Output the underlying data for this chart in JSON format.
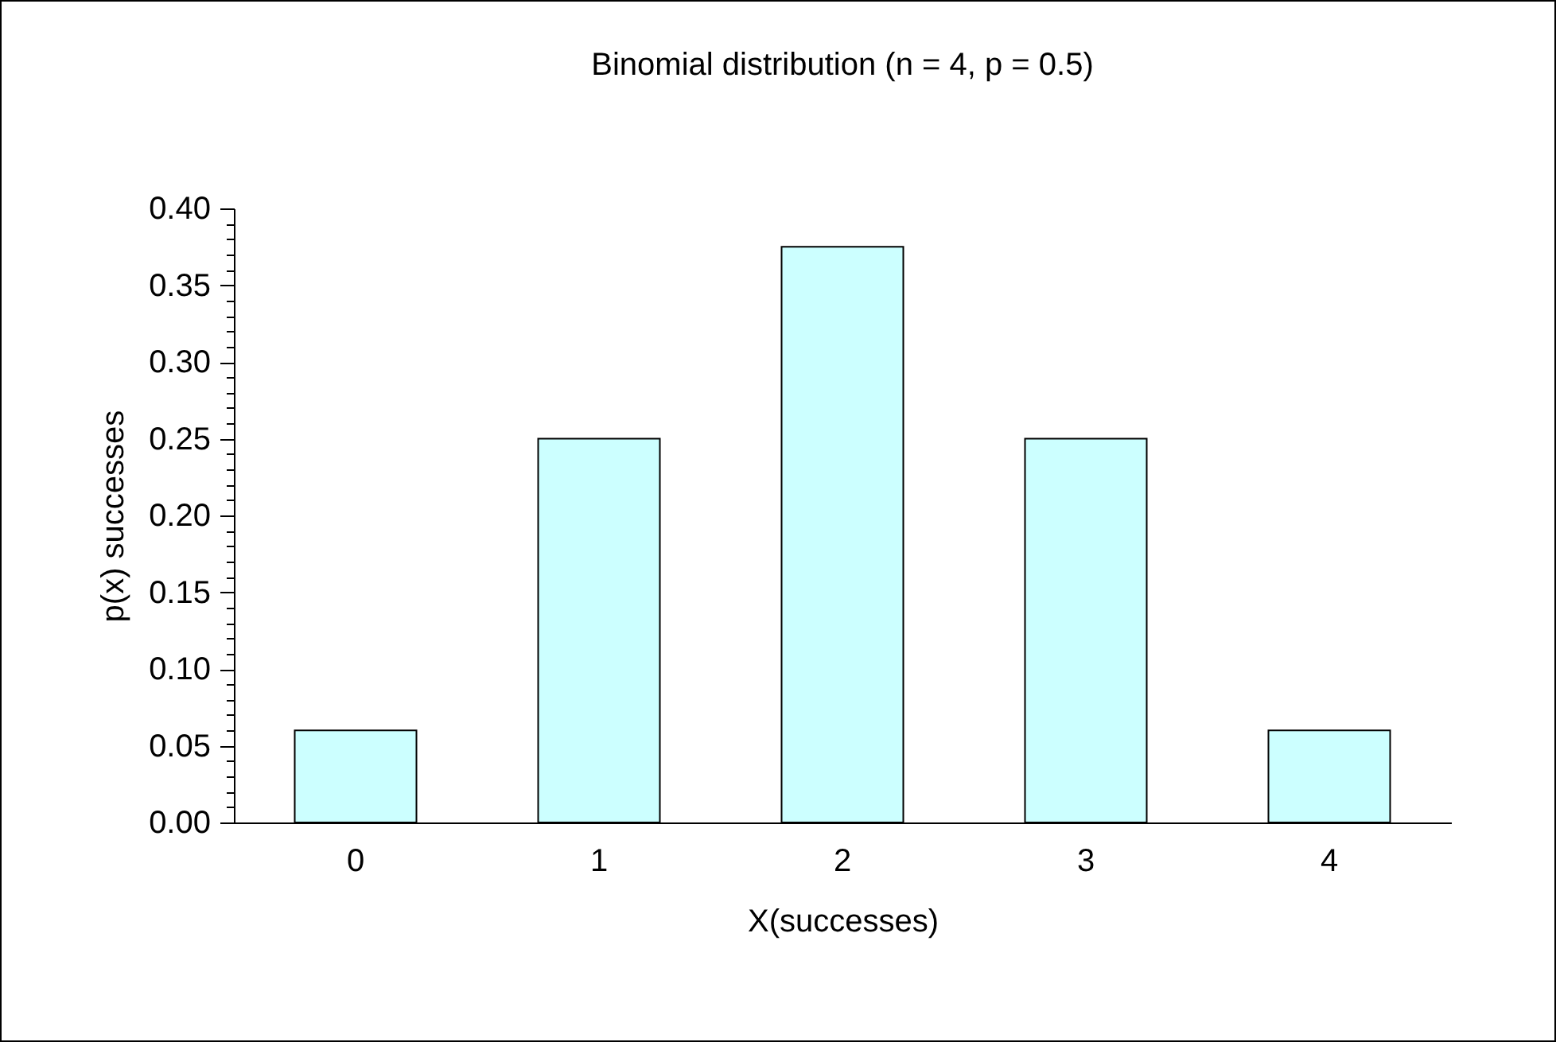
{
  "chart_data": {
    "type": "bar",
    "title": "Binomial distribution (n = 4, p = 0.5)",
    "xlabel": "X(successes)",
    "ylabel": "p(x) successes",
    "categories": [
      "0",
      "1",
      "2",
      "3",
      "4"
    ],
    "values": [
      0.06,
      0.25,
      0.375,
      0.25,
      0.06
    ],
    "color": "#ccffff",
    "ylim": [
      0,
      0.4
    ],
    "yticks": [
      {
        "value": 0,
        "label": "0.00"
      },
      {
        "value": 0.01,
        "label": null
      },
      {
        "value": 0.02,
        "label": null
      },
      {
        "value": 0.03,
        "label": null
      },
      {
        "value": 0.04,
        "label": null
      },
      {
        "value": 0.05,
        "label": "0.05"
      },
      {
        "value": 0.06,
        "label": null
      },
      {
        "value": 0.07,
        "label": null
      },
      {
        "value": 0.08,
        "label": null
      },
      {
        "value": 0.09,
        "label": null
      },
      {
        "value": 0.1,
        "label": "0.10"
      },
      {
        "value": 0.11,
        "label": null
      },
      {
        "value": 0.12,
        "label": null
      },
      {
        "value": 0.13,
        "label": null
      },
      {
        "value": 0.14,
        "label": null
      },
      {
        "value": 0.15,
        "label": "0.15"
      },
      {
        "value": 0.16,
        "label": null
      },
      {
        "value": 0.17,
        "label": null
      },
      {
        "value": 0.18,
        "label": null
      },
      {
        "value": 0.19,
        "label": null
      },
      {
        "value": 0.2,
        "label": "0.20"
      },
      {
        "value": 0.21,
        "label": null
      },
      {
        "value": 0.22,
        "label": null
      },
      {
        "value": 0.23,
        "label": null
      },
      {
        "value": 0.24,
        "label": null
      },
      {
        "value": 0.25,
        "label": "0.25"
      },
      {
        "value": 0.26,
        "label": null
      },
      {
        "value": 0.27,
        "label": null
      },
      {
        "value": 0.28,
        "label": null
      },
      {
        "value": 0.29,
        "label": null
      },
      {
        "value": 0.3,
        "label": "0.30"
      },
      {
        "value": 0.31,
        "label": null
      },
      {
        "value": 0.32,
        "label": null
      },
      {
        "value": 0.33,
        "label": null
      },
      {
        "value": 0.34,
        "label": null
      },
      {
        "value": 0.35,
        "label": "0.35"
      },
      {
        "value": 0.36,
        "label": null
      },
      {
        "value": 0.37,
        "label": null
      },
      {
        "value": 0.38,
        "label": null
      },
      {
        "value": 0.39,
        "label": null
      },
      {
        "value": 0.4,
        "label": "0.40"
      }
    ],
    "grid": false
  }
}
